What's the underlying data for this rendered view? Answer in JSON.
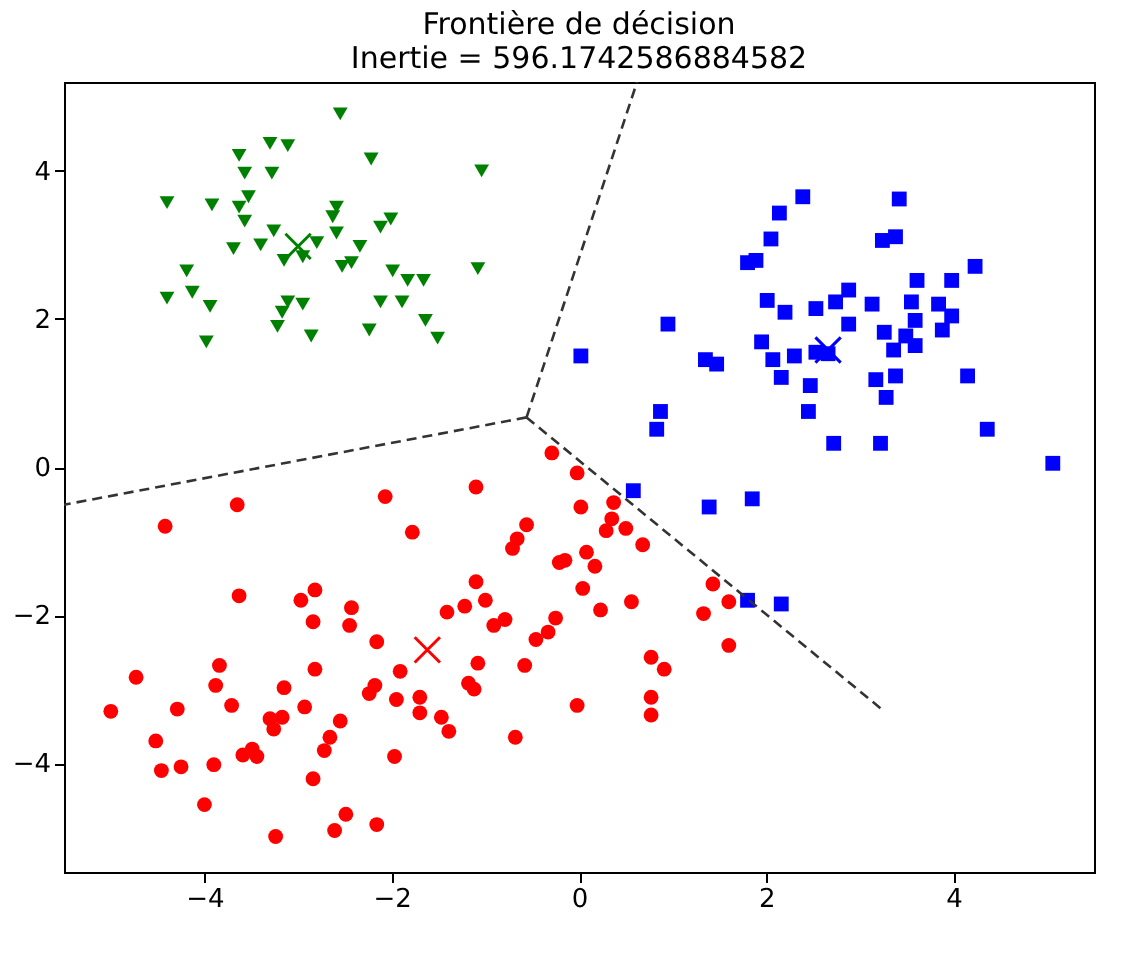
{
  "chart_data": {
    "type": "scatter",
    "title": "Frontière de décision\nInertie = 596.1742586884582",
    "xlim": [
      -5.5,
      5.5
    ],
    "ylim": [
      -5.47,
      5.2
    ],
    "xticks": [
      -4,
      -2,
      0,
      2,
      4
    ],
    "yticks": [
      -4,
      -2,
      0,
      2,
      4
    ],
    "grid": false,
    "series": [
      {
        "marker": "triangle",
        "color": "#008000",
        "x": [
          -2.55,
          -3.3,
          -3.11,
          -3.63,
          -2.22,
          -1.04,
          -3.57,
          -3.28,
          -4.4,
          -3.92,
          -3.53,
          -3.63,
          -3.57,
          -2.59,
          -2.63,
          -2.01,
          -2.12,
          -3.26,
          -2.59,
          -3.69,
          -3.4,
          -2.8,
          -3.15,
          -2.95,
          -2.34,
          -2.43,
          -2.53,
          -4.19,
          -1.99,
          -1.08,
          -1.83,
          -1.66,
          -4.13,
          -4.4,
          -3.94,
          -3.11,
          -2.95,
          -2.12,
          -1.89,
          -3.17,
          -3.22,
          -2.86,
          -2.24,
          -1.64,
          -1.51,
          -3.98
        ],
        "values": [
          4.77,
          4.37,
          4.34,
          4.21,
          4.16,
          4.0,
          3.97,
          3.97,
          3.57,
          3.54,
          3.65,
          3.51,
          3.32,
          3.51,
          3.38,
          3.35,
          3.24,
          3.19,
          3.16,
          2.95,
          3.0,
          3.03,
          2.79,
          2.84,
          2.98,
          2.76,
          2.71,
          2.65,
          2.65,
          2.68,
          2.52,
          2.52,
          2.36,
          2.28,
          2.17,
          2.23,
          2.2,
          2.23,
          2.23,
          2.09,
          1.9,
          1.77,
          1.85,
          1.98,
          1.74,
          1.69
        ]
      },
      {
        "marker": "square",
        "color": "#0000ff",
        "x": [
          2.39,
          3.42,
          2.14,
          2.05,
          3.24,
          3.38,
          1.8,
          1.89,
          4.23,
          3.61,
          3.98,
          2.01,
          2.2,
          2.53,
          2.74,
          2.88,
          3.13,
          3.55,
          3.84,
          3.98,
          3.59,
          0.95,
          2.88,
          3.26,
          3.88,
          3.49,
          0.02,
          1.95,
          2.53,
          2.66,
          3.59,
          3.36,
          1.35,
          1.47,
          2.07,
          2.3,
          2.16,
          2.47,
          3.17,
          3.38,
          4.15,
          3.28,
          0.87,
          0.83,
          2.45,
          2.72,
          3.22,
          4.36,
          5.06,
          0.58,
          1.39,
          1.85,
          2.16,
          1.8
        ],
        "values": [
          3.65,
          3.62,
          3.43,
          3.08,
          3.06,
          3.11,
          2.76,
          2.79,
          2.71,
          2.52,
          2.52,
          2.25,
          2.09,
          2.14,
          2.23,
          2.39,
          2.2,
          2.23,
          2.2,
          2.04,
          1.98,
          1.93,
          1.93,
          1.82,
          1.85,
          1.77,
          1.5,
          1.69,
          1.55,
          1.53,
          1.64,
          1.58,
          1.45,
          1.39,
          1.45,
          1.5,
          1.21,
          1.1,
          1.18,
          1.23,
          1.23,
          0.94,
          0.75,
          0.51,
          0.75,
          0.32,
          0.32,
          0.51,
          0.05,
          -0.32,
          -0.54,
          -0.43,
          -1.85,
          -1.8
        ]
      },
      {
        "marker": "circle",
        "color": "#ff0000",
        "x": [
          -4.42,
          -3.65,
          -2.07,
          -3.63,
          -2.97,
          -2.82,
          -2.84,
          -2.43,
          -2.45,
          -2.16,
          -4.73,
          -3.84,
          -3.88,
          -3.71,
          -3.15,
          -2.82,
          -2.93,
          -5.0,
          -4.29,
          -3.3,
          -3.17,
          -3.26,
          -2.55,
          -2.24,
          -2.18,
          -4.52,
          -4.46,
          -4.25,
          -3.9,
          -3.59,
          -3.49,
          -3.44,
          -2.66,
          -2.72,
          -2.84,
          -4.0,
          -3.24,
          -2.61,
          -2.49,
          -2.16,
          -0.29,
          -0.02,
          -1.1,
          0.02,
          0.37,
          0.35,
          0.29,
          0.5,
          0.68,
          -1.78,
          -0.56,
          -0.66,
          -0.71,
          -0.21,
          -0.15,
          0.08,
          0.17,
          0.04,
          0.23,
          0.56,
          1.43,
          1.6,
          1.33,
          1.6,
          -1.1,
          -1.0,
          -1.22,
          -1.41,
          -0.91,
          -0.79,
          -0.25,
          -0.33,
          -0.46,
          -1.91,
          -1.08,
          -0.58,
          -1.95,
          -1.7,
          -1.7,
          -1.18,
          -1.12,
          -1.47,
          -1.39,
          -0.02,
          0.77,
          0.91,
          0.77,
          0.77,
          -0.68,
          -1.97
        ],
        "values": [
          -0.8,
          -0.51,
          -0.4,
          -1.74,
          -1.8,
          -1.66,
          -2.09,
          -1.9,
          -2.14,
          -2.36,
          -2.84,
          -2.68,
          -2.95,
          -3.22,
          -2.98,
          -2.73,
          -3.24,
          -3.3,
          -3.27,
          -3.4,
          -3.38,
          -3.54,
          -3.43,
          -3.06,
          -2.95,
          -3.7,
          -4.1,
          -4.05,
          -4.02,
          -3.89,
          -3.81,
          -3.91,
          -3.65,
          -3.83,
          -4.21,
          -4.56,
          -4.99,
          -4.91,
          -4.69,
          -4.83,
          0.19,
          -0.08,
          -0.27,
          -0.54,
          -0.48,
          -0.7,
          -0.86,
          -0.83,
          -1.05,
          -0.88,
          -0.78,
          -0.97,
          -1.1,
          -1.29,
          -1.26,
          -1.15,
          -1.34,
          -1.64,
          -1.93,
          -1.82,
          -1.58,
          -1.82,
          -1.98,
          -2.41,
          -1.55,
          -1.8,
          -1.88,
          -1.96,
          -2.14,
          -2.06,
          -2.04,
          -2.23,
          -2.33,
          -2.76,
          -2.65,
          -2.68,
          -3.14,
          -3.11,
          -3.32,
          -2.92,
          -3.0,
          -3.38,
          -3.57,
          -3.22,
          -2.57,
          -2.73,
          -3.11,
          -3.35,
          -3.65,
          -3.91
        ]
      },
      {
        "marker": "cross",
        "color": "#008000",
        "x": [
          -3.0
        ],
        "values": [
          2.98
        ]
      },
      {
        "marker": "cross",
        "color": "#0000ff",
        "x": [
          2.66
        ],
        "values": [
          1.58
        ]
      },
      {
        "marker": "cross",
        "color": "#ff0000",
        "x": [
          -1.62
        ],
        "values": [
          -2.47
        ]
      },
      {
        "type": "line",
        "line_style": "dashed",
        "color": "#333333",
        "x": [
          -0.56,
          0.62
        ],
        "values": [
          0.67,
          5.2
        ]
      },
      {
        "type": "line",
        "line_style": "dashed",
        "color": "#333333",
        "x": [
          -0.56,
          -5.5
        ],
        "values": [
          0.67,
          -0.51
        ]
      },
      {
        "type": "line",
        "line_style": "dashed",
        "color": "#333333",
        "x": [
          -0.56,
          3.26
        ],
        "values": [
          0.67,
          -3.3
        ]
      }
    ]
  }
}
